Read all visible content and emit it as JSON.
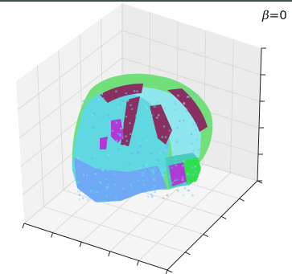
{
  "chart_data": {
    "type": "scatter3d",
    "title": "",
    "annotation": {
      "symbol": "β",
      "text": "=0"
    },
    "xlabel": "",
    "ylabel": "",
    "zlabel": "",
    "grid": true,
    "tick_labels": false,
    "colors": {
      "pane_left": "#f2f2f2",
      "pane_right": "#ebebeb",
      "pane_floor": "#f5f5f5",
      "grid": "#d6d6d6",
      "cyan": "#5fd8e2",
      "cyan_light": "#8fe6ee",
      "green": "#72e07a",
      "green_bright": "#2ee04a",
      "maroon": "#8a2f62",
      "purple": "#b03ad6",
      "blue": "#6fa8f5",
      "teal": "#48cdbd"
    },
    "clusters": [
      "cyan",
      "green",
      "maroon",
      "purple",
      "blue",
      "teal"
    ]
  }
}
